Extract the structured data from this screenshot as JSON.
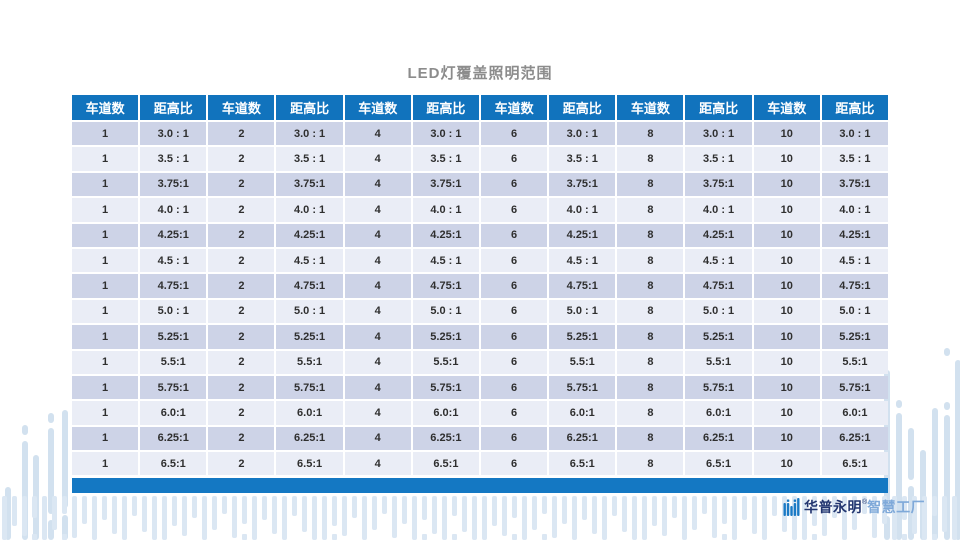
{
  "title": "LED灯覆盖照明范围",
  "table": {
    "headers": [
      "车道数",
      "距高比",
      "车道数",
      "距高比",
      "车道数",
      "距高比",
      "车道数",
      "距高比",
      "车道数",
      "距高比",
      "车道数",
      "距高比"
    ],
    "lanes": [
      "1",
      "2",
      "4",
      "6",
      "8",
      "10"
    ],
    "ratios": [
      "3.0 : 1",
      "3.5 : 1",
      "3.75:1",
      "4.0 : 1",
      "4.25:1",
      "4.5 : 1",
      "4.75:1",
      "5.0 : 1",
      "5.25:1",
      "5.5:1",
      "5.75:1",
      "6.0:1",
      "6.25:1",
      "6.5:1"
    ]
  },
  "footer": {
    "brand_name": "华普永明",
    "brand_reg": "®",
    "brand_suffix": "智慧工厂"
  },
  "colors": {
    "header_blue": "#1173bd",
    "bottom_bar_blue": "#1478c3",
    "row_odd": "#cdd3e7",
    "row_even": "#eaedf6",
    "deco_blue": "#dbe7f3",
    "deco_blue_2": "#d2e1ef",
    "brand_navy": "#22356f",
    "brand_light_blue": "#7fa9d9",
    "title_gray": "#8c8c8c",
    "icon_blue": "#1b7ac5"
  }
}
